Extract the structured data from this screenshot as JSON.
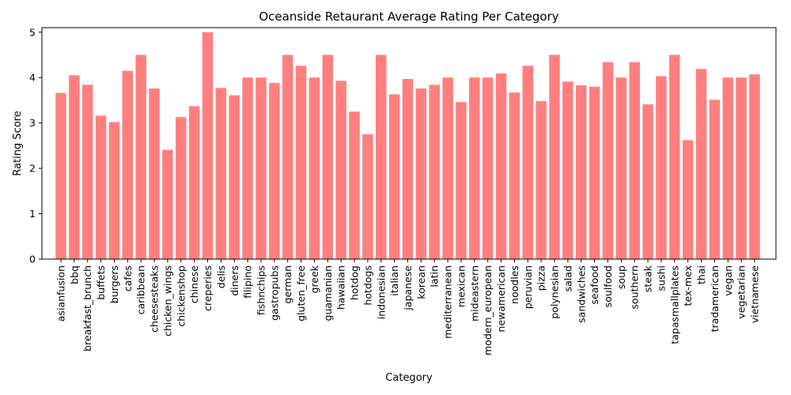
{
  "chart_data": {
    "type": "bar",
    "title": "Oceanside Retaurant Average Rating Per Category",
    "xlabel": "Category",
    "ylabel": "Rating Score",
    "ylim": [
      0,
      5.1
    ],
    "yticks": [
      0,
      1,
      2,
      3,
      4,
      5
    ],
    "bar_color": "#ff7f7f",
    "grid": false,
    "legend": "none",
    "categories": [
      "asianfusion",
      "bbq",
      "breakfast_brunch",
      "buffets",
      "burgers",
      "cafes",
      "caribbean",
      "cheesesteaks",
      "chicken_wings",
      "chickenshop",
      "chinese",
      "creperies",
      "delis",
      "diners",
      "filipino",
      "fishnchips",
      "gastropubs",
      "german",
      "gluten_free",
      "greek",
      "guamanian",
      "hawaiian",
      "hotdog",
      "hotdogs",
      "indonesian",
      "italian",
      "japanese",
      "korean",
      "latin",
      "mediterranean",
      "mexican",
      "mideastern",
      "modern_european",
      "newamerican",
      "noodles",
      "peruvian",
      "pizza",
      "polynesian",
      "salad",
      "sandwiches",
      "seafood",
      "soulfood",
      "soup",
      "southern",
      "steak",
      "sushi",
      "tapasmallplates",
      "tex-mex",
      "thai",
      "tradamerican",
      "vegan",
      "vegetarian",
      "vietnamese"
    ],
    "values": [
      3.66,
      4.05,
      3.84,
      3.16,
      3.02,
      4.15,
      4.5,
      3.76,
      2.41,
      3.13,
      3.37,
      5.0,
      3.77,
      3.61,
      4.0,
      4.0,
      3.88,
      4.5,
      4.26,
      4.0,
      4.5,
      3.93,
      3.25,
      2.75,
      4.5,
      3.63,
      3.97,
      3.76,
      3.84,
      4.0,
      3.46,
      4.0,
      4.0,
      4.09,
      3.67,
      4.26,
      3.48,
      4.5,
      3.91,
      3.83,
      3.8,
      4.34,
      4.0,
      4.34,
      3.41,
      4.03,
      4.5,
      2.62,
      4.19,
      3.51,
      4.0,
      4.0,
      4.07
    ]
  }
}
